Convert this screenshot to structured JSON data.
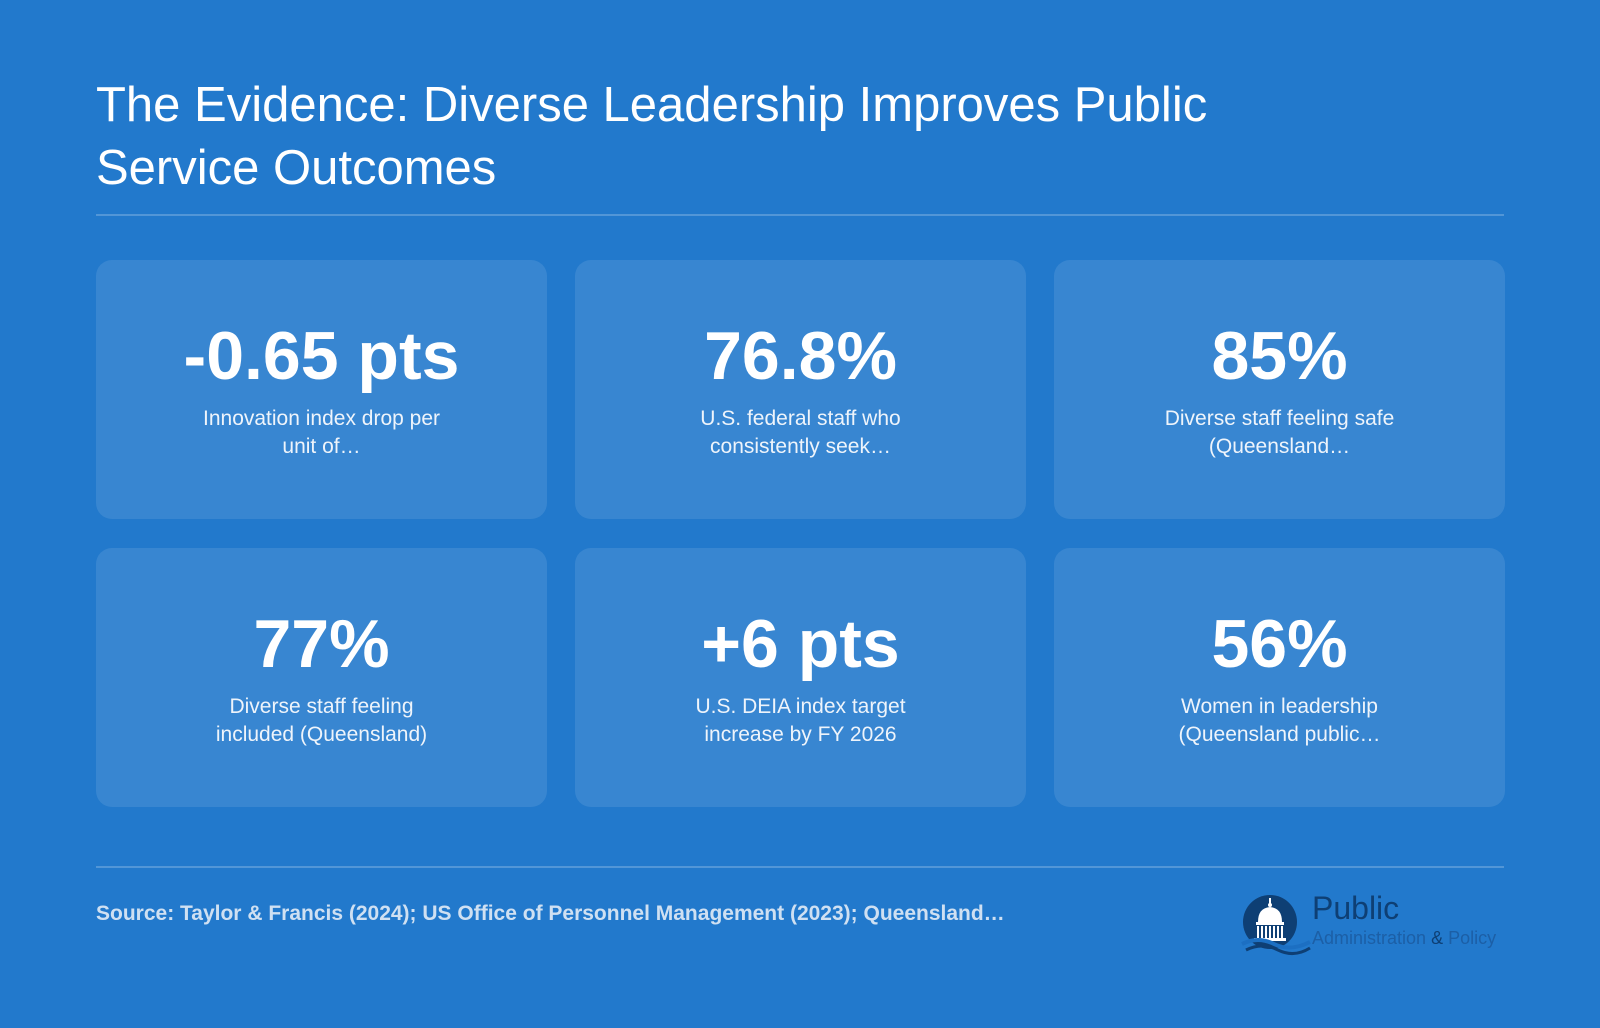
{
  "header": {
    "title": "The Evidence: Diverse Leadership Improves Public Service Outcomes"
  },
  "stats": [
    {
      "value": "-0.65 pts",
      "label": "Innovation index drop per unit of…"
    },
    {
      "value": "76.8%",
      "label": "U.S. federal staff who consistently seek…"
    },
    {
      "value": "85%",
      "label": "Diverse staff feeling safe (Queensland…"
    },
    {
      "value": "77%",
      "label": "Diverse staff feeling included (Queensland)"
    },
    {
      "value": "+6 pts",
      "label": "U.S. DEIA index target increase by FY 2026"
    },
    {
      "value": "56%",
      "label": "Women in leadership (Queensland public…"
    }
  ],
  "footer": {
    "source": "Source: Taylor & Francis (2024); US Office of Personnel Management (2023); Queensland…"
  },
  "logo": {
    "word": "Public",
    "sub_left": "Administration",
    "sub_amp": "&",
    "sub_right": "Policy",
    "icon": "capitol-dome-icon"
  },
  "colors": {
    "background": "#2279cc",
    "card": "rgba(255,255,255,0.10)",
    "text": "#ffffff",
    "logo_dark": "#0e3f74"
  }
}
